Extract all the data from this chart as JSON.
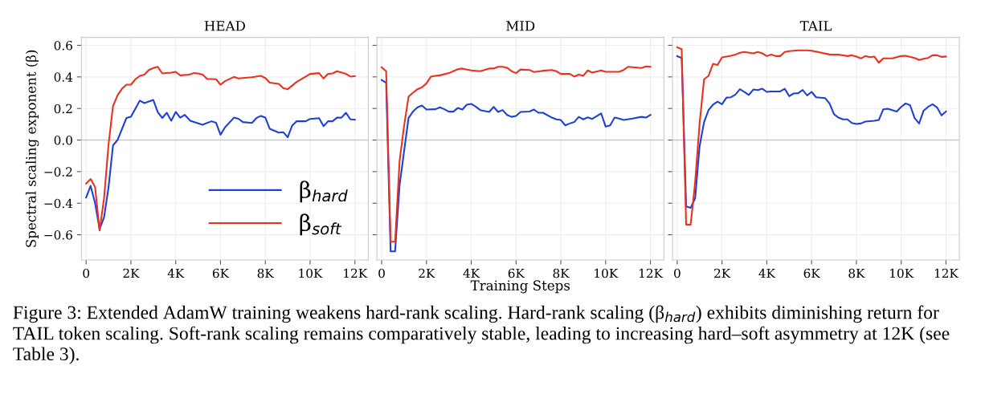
{
  "chart_data": [
    {
      "type": "line",
      "title": "HEAD",
      "ylabel": "Spectral scaling exponent (β)",
      "xlim": [
        -210,
        12600
      ],
      "ylim": [
        -0.76,
        0.65
      ],
      "xticks": [
        0,
        {
          "value": 2000,
          "label": "2K"
        },
        {
          "value": 4000,
          "label": "4K"
        },
        {
          "value": 6000,
          "label": "6K"
        },
        {
          "value": 8000,
          "label": "8K"
        },
        {
          "value": 10000,
          "label": "10K"
        },
        {
          "value": 12000,
          "label": "12K"
        }
      ],
      "grid": true,
      "legend": "bottom right",
      "yticks": [
        {
          "value": -0.6,
          "label": "−0.6"
        },
        {
          "value": -0.4,
          "label": "−0.4"
        },
        {
          "value": -0.2,
          "label": "−0.2"
        },
        {
          "value": 0,
          "label": "0.0"
        },
        0.2,
        0.4,
        0.6
      ],
      "ref_lines": [
        {
          "axis": "y",
          "value": 0,
          "color": "#c8c8c8"
        }
      ],
      "series": [
        {
          "name": "β$_{hard}$",
          "color": "#1f3fd6",
          "x": [
            0,
            200,
            400,
            600,
            800,
            1000,
            1200,
            1400,
            1800,
            2000,
            2400,
            2600,
            3000,
            3200,
            3400,
            3600,
            3800,
            4000,
            4200,
            4400,
            4650,
            5200,
            5600,
            5800,
            6000,
            6200,
            6600,
            6800,
            7000,
            7400,
            7600,
            7800,
            8000,
            8200,
            8600,
            8800,
            9000,
            9200,
            9400,
            9800,
            10000,
            10400,
            10600,
            10800,
            11000,
            11200,
            11400,
            11600,
            11800,
            12000
          ],
          "values": [
            -0.364,
            -0.29,
            -0.4,
            -0.565,
            -0.49,
            -0.3,
            -0.034,
            0.0,
            0.14,
            0.147,
            0.25,
            0.234,
            0.254,
            0.176,
            0.14,
            0.173,
            0.122,
            0.178,
            0.142,
            0.16,
            0.122,
            0.097,
            0.119,
            0.109,
            0.034,
            0.08,
            0.142,
            0.135,
            0.114,
            0.108,
            0.139,
            0.153,
            0.142,
            0.071,
            0.047,
            0.05,
            0.017,
            0.092,
            0.119,
            0.119,
            0.134,
            0.139,
            0.088,
            0.119,
            0.119,
            0.142,
            0.142,
            0.173,
            0.131,
            0.129
          ]
        },
        {
          "name": "β$_{soft}$",
          "color": "#e8321e",
          "x": [
            0,
            200,
            400,
            600,
            800,
            1000,
            1200,
            1400,
            1600,
            1800,
            2000,
            2200,
            2400,
            2600,
            2800,
            3000,
            3200,
            3400,
            3800,
            4000,
            4200,
            4600,
            4800,
            5000,
            5200,
            5400,
            5800,
            6000,
            6200,
            6600,
            6800,
            7400,
            7800,
            8000,
            8200,
            8600,
            8800,
            9000,
            9400,
            10000,
            10400,
            10600,
            10800,
            11000,
            11200,
            11600,
            11800,
            12000
          ],
          "values": [
            -0.276,
            -0.247,
            -0.297,
            -0.573,
            -0.37,
            -0.03,
            0.215,
            0.283,
            0.325,
            0.351,
            0.351,
            0.385,
            0.407,
            0.414,
            0.444,
            0.456,
            0.464,
            0.422,
            0.427,
            0.432,
            0.41,
            0.414,
            0.424,
            0.422,
            0.414,
            0.388,
            0.385,
            0.351,
            0.373,
            0.4,
            0.39,
            0.398,
            0.407,
            0.393,
            0.364,
            0.356,
            0.329,
            0.322,
            0.368,
            0.419,
            0.424,
            0.39,
            0.419,
            0.422,
            0.436,
            0.419,
            0.402,
            0.405
          ]
        }
      ]
    },
    {
      "type": "line",
      "title": "MID",
      "xlabel": "Training Steps",
      "tick_labels": "x",
      "xlim": [
        -210,
        12600
      ],
      "ylim": [
        -0.76,
        0.65
      ],
      "xticks": [
        0,
        {
          "value": 2000,
          "label": "2K"
        },
        {
          "value": 4000,
          "label": "4K"
        },
        {
          "value": 6000,
          "label": "6K"
        },
        {
          "value": 8000,
          "label": "8K"
        },
        {
          "value": 10000,
          "label": "10K"
        },
        {
          "value": 12000,
          "label": "12K"
        }
      ],
      "yticks": [
        -0.6,
        -0.4,
        -0.2,
        0,
        0.2,
        0.4,
        0.6
      ],
      "grid": true,
      "ref_lines": [
        {
          "axis": "y",
          "value": 0,
          "color": "#c8c8c8"
        }
      ],
      "series": [
        {
          "color": "#1f3fd6",
          "x": [
            0,
            200,
            400,
            600,
            800,
            1200,
            1400,
            1600,
            1800,
            2000,
            2400,
            2600,
            2800,
            3000,
            3200,
            3400,
            3600,
            3800,
            4000,
            4200,
            4400,
            4800,
            5000,
            5200,
            5400,
            5600,
            5800,
            6000,
            6200,
            6600,
            6800,
            7000,
            7200,
            7600,
            7800,
            8000,
            8200,
            8400,
            8600,
            8800,
            9000,
            9200,
            9400,
            9800,
            10000,
            10200,
            10400,
            10600,
            10800,
            11200,
            11600,
            11800,
            12000
          ],
          "values": [
            0.381,
            0.363,
            -0.705,
            -0.705,
            -0.285,
            0.139,
            0.181,
            0.207,
            0.219,
            0.193,
            0.195,
            0.207,
            0.195,
            0.18,
            0.18,
            0.203,
            0.193,
            0.224,
            0.229,
            0.212,
            0.19,
            0.178,
            0.21,
            0.178,
            0.19,
            0.159,
            0.147,
            0.153,
            0.178,
            0.181,
            0.193,
            0.173,
            0.173,
            0.142,
            0.131,
            0.127,
            0.093,
            0.105,
            0.114,
            0.147,
            0.131,
            0.144,
            0.134,
            0.169,
            0.085,
            0.093,
            0.142,
            0.136,
            0.127,
            0.136,
            0.147,
            0.142,
            0.159
          ]
        },
        {
          "color": "#e8321e",
          "x": [
            0,
            200,
            400,
            600,
            800,
            1000,
            1200,
            1400,
            1600,
            1800,
            2000,
            2200,
            2400,
            2600,
            3000,
            3400,
            3600,
            4000,
            4400,
            4800,
            5000,
            5200,
            5400,
            5600,
            5800,
            6000,
            6200,
            6600,
            6800,
            7200,
            7600,
            7800,
            8000,
            8400,
            8600,
            8800,
            9000,
            9200,
            9400,
            9800,
            10000,
            10600,
            10800,
            11000,
            11600,
            11800,
            12000
          ],
          "values": [
            0.461,
            0.436,
            -0.644,
            -0.644,
            -0.132,
            0.088,
            0.275,
            0.3,
            0.322,
            0.334,
            0.359,
            0.402,
            0.407,
            0.41,
            0.424,
            0.449,
            0.453,
            0.441,
            0.436,
            0.453,
            0.453,
            0.464,
            0.464,
            0.458,
            0.436,
            0.424,
            0.447,
            0.444,
            0.431,
            0.439,
            0.444,
            0.436,
            0.419,
            0.419,
            0.402,
            0.414,
            0.407,
            0.441,
            0.427,
            0.441,
            0.432,
            0.432,
            0.444,
            0.464,
            0.456,
            0.466,
            0.464
          ]
        }
      ]
    },
    {
      "type": "line",
      "title": "TAIL",
      "tick_labels": "x",
      "xlim": [
        -210,
        12600
      ],
      "ylim": [
        -0.76,
        0.65
      ],
      "xticks": [
        0,
        {
          "value": 2000,
          "label": "2K"
        },
        {
          "value": 4000,
          "label": "4K"
        },
        {
          "value": 6000,
          "label": "6K"
        },
        {
          "value": 8000,
          "label": "8K"
        },
        {
          "value": 10000,
          "label": "10K"
        },
        {
          "value": 12000,
          "label": "12K"
        }
      ],
      "yticks": [
        -0.6,
        -0.4,
        -0.2,
        0,
        0.2,
        0.4,
        0.6
      ],
      "grid": true,
      "ref_lines": [
        {
          "axis": "y",
          "value": 0,
          "color": "#c8c8c8"
        }
      ],
      "annotations": [
        "Figure 3: Extended AdamW training weakens hard-rank scaling. Hard-rank scaling (β$_{hard}$) exhibits diminishing return for TAIL token scaling. Soft-rank scaling remains comparatively stable, leading to increasing hard–soft asymmetry at 12K (see Table 3)."
      ],
      "series": [
        {
          "color": "#1f3fd6",
          "x": [
            0,
            200,
            400,
            600,
            800,
            1000,
            1200,
            1400,
            1600,
            1800,
            2000,
            2200,
            2400,
            2600,
            2800,
            3000,
            3200,
            3400,
            3600,
            3800,
            4000,
            4200,
            4600,
            4800,
            5000,
            5200,
            5400,
            5600,
            5800,
            6000,
            6200,
            6600,
            6800,
            7000,
            7200,
            7400,
            7600,
            7800,
            8000,
            8200,
            8400,
            8800,
            9000,
            9200,
            9400,
            9800,
            10000,
            10200,
            10400,
            10600,
            10800,
            11000,
            11200,
            11400,
            11600,
            11800,
            12000
          ],
          "values": [
            0.532,
            0.52,
            -0.42,
            -0.429,
            -0.37,
            -0.039,
            0.114,
            0.19,
            0.224,
            0.244,
            0.227,
            0.269,
            0.271,
            0.288,
            0.322,
            0.305,
            0.286,
            0.32,
            0.317,
            0.325,
            0.305,
            0.308,
            0.308,
            0.325,
            0.278,
            0.295,
            0.297,
            0.317,
            0.283,
            0.305,
            0.271,
            0.266,
            0.232,
            0.164,
            0.142,
            0.131,
            0.131,
            0.108,
            0.102,
            0.105,
            0.117,
            0.122,
            0.127,
            0.195,
            0.198,
            0.181,
            0.21,
            0.232,
            0.22,
            0.139,
            0.105,
            0.186,
            0.21,
            0.227,
            0.207,
            0.156,
            0.181
          ]
        },
        {
          "color": "#e8321e",
          "x": [
            0,
            200,
            400,
            600,
            800,
            1000,
            1200,
            1400,
            1600,
            1800,
            2000,
            2400,
            2600,
            2800,
            3000,
            3400,
            3600,
            3800,
            4000,
            4200,
            4400,
            4600,
            4800,
            5000,
            5400,
            5800,
            6000,
            6400,
            6800,
            7200,
            7600,
            7800,
            8000,
            8200,
            8400,
            8600,
            8800,
            9000,
            9200,
            9600,
            10000,
            10200,
            10600,
            10800,
            11000,
            11200,
            11400,
            11600,
            11800,
            12000
          ],
          "values": [
            0.588,
            0.576,
            -0.536,
            -0.536,
            -0.268,
            0.105,
            0.385,
            0.407,
            0.483,
            0.475,
            0.524,
            0.534,
            0.541,
            0.553,
            0.558,
            0.549,
            0.558,
            0.549,
            0.532,
            0.542,
            0.532,
            0.532,
            0.558,
            0.563,
            0.568,
            0.568,
            0.566,
            0.554,
            0.542,
            0.541,
            0.532,
            0.537,
            0.529,
            0.517,
            0.532,
            0.525,
            0.529,
            0.49,
            0.517,
            0.517,
            0.532,
            0.534,
            0.52,
            0.507,
            0.515,
            0.52,
            0.537,
            0.537,
            0.527,
            0.529
          ]
        }
      ]
    }
  ]
}
